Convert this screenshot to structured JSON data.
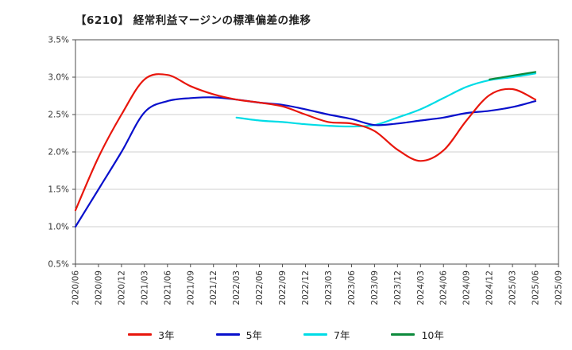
{
  "chart_data": {
    "type": "line",
    "title": "【6210】 経常利益マージンの標準偏差の推移",
    "xlabel": "",
    "ylabel": "",
    "ylim": [
      0.5,
      3.5
    ],
    "grid": true,
    "legend_position": "bottom",
    "y_ticks": [
      0.5,
      1.0,
      1.5,
      2.0,
      2.5,
      3.0,
      3.5
    ],
    "y_tick_labels": [
      "0.5%",
      "1.0%",
      "1.5%",
      "2.0%",
      "2.5%",
      "3.0%",
      "3.5%"
    ],
    "x_labels": [
      "2020/06",
      "2020/09",
      "2020/12",
      "2021/03",
      "2021/06",
      "2021/09",
      "2021/12",
      "2022/03",
      "2022/06",
      "2022/09",
      "2022/12",
      "2023/03",
      "2023/06",
      "2023/09",
      "2023/12",
      "2024/03",
      "2024/06",
      "2024/09",
      "2024/12",
      "2025/03",
      "2025/06",
      "2025/09"
    ],
    "series": [
      {
        "name": "3年",
        "color": "#e8160c",
        "values": [
          1.22,
          1.93,
          2.5,
          2.97,
          3.03,
          2.88,
          2.77,
          2.7,
          2.66,
          2.61,
          2.5,
          2.4,
          2.38,
          2.28,
          2.03,
          1.88,
          2.02,
          2.42,
          2.76,
          2.84,
          2.7,
          null
        ]
      },
      {
        "name": "5年",
        "color": "#0910cc",
        "values": [
          1.0,
          1.5,
          2.0,
          2.53,
          2.68,
          2.72,
          2.73,
          2.7,
          2.66,
          2.63,
          2.57,
          2.5,
          2.44,
          2.36,
          2.38,
          2.42,
          2.46,
          2.52,
          2.55,
          2.6,
          2.68,
          null
        ]
      },
      {
        "name": "7年",
        "color": "#00dce6",
        "values": [
          null,
          null,
          null,
          null,
          null,
          null,
          null,
          2.46,
          2.42,
          2.4,
          2.37,
          2.35,
          2.34,
          2.36,
          2.46,
          2.57,
          2.72,
          2.87,
          2.96,
          3.0,
          3.05,
          null
        ]
      },
      {
        "name": "10年",
        "color": "#0d8a3c",
        "values": [
          null,
          null,
          null,
          null,
          null,
          null,
          null,
          null,
          null,
          null,
          null,
          null,
          null,
          null,
          null,
          null,
          null,
          null,
          2.97,
          3.02,
          3.07,
          null
        ]
      }
    ]
  }
}
